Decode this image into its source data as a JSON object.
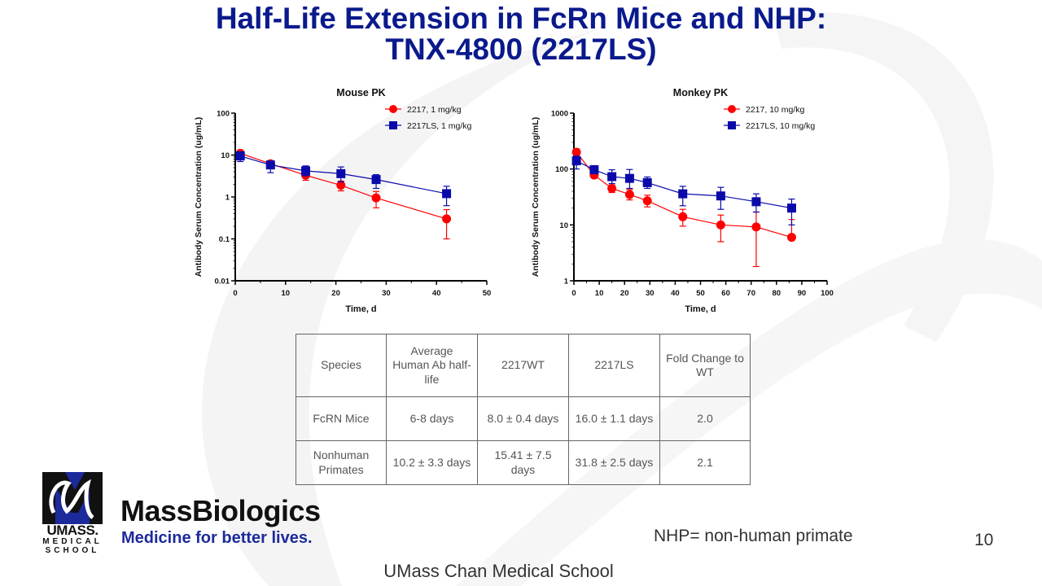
{
  "slide": {
    "title_line1": "Half-Life Extension in FcRn Mice and NHP:",
    "title_line2": "TNX-4800 (2217LS)",
    "note": "NHP= non-human primate",
    "page_number": "10",
    "footer": "UMass Chan Medical School",
    "accent_color": "#0a1a8c"
  },
  "logo": {
    "umass_line1": "UMASS.",
    "umass_line2": "MEDICAL",
    "umass_line3": "SCHOOL",
    "brand": "MassBiologics",
    "tagline": "Medicine for better lives."
  },
  "chart_data": [
    {
      "type": "line",
      "title": "Mouse PK",
      "xlabel": "Time, d",
      "ylabel": "Antibody Serum Concentration (ug/mL)",
      "xlim": [
        0,
        50
      ],
      "ylim": [
        0.01,
        100
      ],
      "yscale": "log",
      "xticks": [
        "0",
        "10",
        "20",
        "30",
        "40",
        "50"
      ],
      "yticks": [
        "100",
        "10",
        "1",
        "0.1",
        "0.01"
      ],
      "legend": "top-right",
      "series": [
        {
          "name": "2217, 1 mg/kg",
          "color": "#ff0000",
          "marker": "circle",
          "x": [
            1,
            7,
            14,
            21,
            28,
            42
          ],
          "y": [
            11,
            6.2,
            3.3,
            1.9,
            0.95,
            0.3
          ],
          "err_low": [
            9,
            5,
            2.5,
            1.4,
            0.55,
            0.1
          ],
          "err_high": [
            12.5,
            7.2,
            4.3,
            2.4,
            1.35,
            0.5
          ]
        },
        {
          "name": "2217LS, 1 mg/kg",
          "color": "#0a0aaa",
          "marker": "square",
          "x": [
            1,
            7,
            14,
            21,
            28,
            42
          ],
          "y": [
            9.5,
            5.8,
            4.2,
            3.6,
            2.6,
            1.2
          ],
          "err_low": [
            7,
            3.8,
            3.2,
            2.3,
            1.6,
            0.62
          ],
          "err_high": [
            12,
            7,
            5.5,
            5.2,
            3.4,
            1.8
          ]
        }
      ]
    },
    {
      "type": "line",
      "title": "Monkey PK",
      "xlabel": "Time, d",
      "ylabel": "Antibody Serum Concentration (ug/mL)",
      "xlim": [
        0,
        100
      ],
      "ylim": [
        1,
        1000
      ],
      "yscale": "log",
      "xticks": [
        "0",
        "10",
        "20",
        "30",
        "40",
        "50",
        "60",
        "70",
        "80",
        "90",
        "100"
      ],
      "yticks": [
        "1000",
        "100",
        "10",
        "1"
      ],
      "legend": "top-right",
      "series": [
        {
          "name": "2217, 10 mg/kg",
          "color": "#ff0000",
          "marker": "circle",
          "x": [
            1,
            8,
            15,
            22,
            29,
            43,
            58,
            72,
            86
          ],
          "y": [
            200,
            78,
            45,
            35,
            27,
            14,
            10,
            9.2,
            6
          ],
          "err_low": [
            170,
            72,
            38,
            28,
            21,
            9.5,
            5,
            1.8,
            5.5
          ],
          "err_high": [
            230,
            85,
            52,
            43,
            34,
            19,
            15,
            17,
            12.5
          ]
        },
        {
          "name": "2217LS, 10 mg/kg",
          "color": "#0a0aaa",
          "marker": "square",
          "x": [
            1,
            8,
            15,
            22,
            29,
            43,
            58,
            72,
            86
          ],
          "y": [
            140,
            97,
            73,
            68,
            57,
            36,
            33,
            26,
            20
          ],
          "err_low": [
            100,
            85,
            55,
            45,
            45,
            22,
            19,
            17,
            10
          ],
          "err_high": [
            170,
            115,
            97,
            98,
            72,
            49,
            47,
            36,
            29
          ]
        }
      ]
    }
  ],
  "table": {
    "headers": [
      "Species",
      "Average Human Ab half-life",
      "2217WT",
      "2217LS",
      "Fold Change to WT"
    ],
    "rows": [
      [
        "FcRN Mice",
        "6-8 days",
        "8.0 ± 0.4 days",
        "16.0 ± 1.1 days",
        "2.0"
      ],
      [
        "Nonhuman Primates",
        "10.2 ± 3.3 days",
        "15.41 ± 7.5 days",
        "31.8 ± 2.5 days",
        "2.1"
      ]
    ]
  }
}
